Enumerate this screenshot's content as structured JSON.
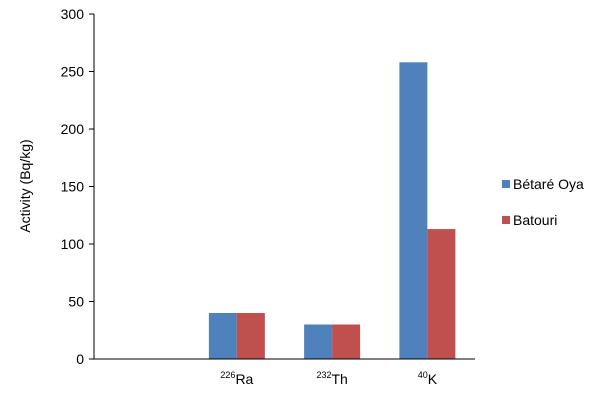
{
  "chart_data": {
    "type": "bar",
    "title": "",
    "xlabel": "",
    "ylabel": "Activity (Bq/kg)",
    "ylim": [
      0,
      300
    ],
    "yticks": [
      0,
      50,
      100,
      150,
      200,
      250,
      300
    ],
    "categories": [
      {
        "mass": "",
        "symbol": ""
      },
      {
        "mass": "226",
        "symbol": "Ra"
      },
      {
        "mass": "232",
        "symbol": "Th"
      },
      {
        "mass": "40",
        "symbol": "K"
      }
    ],
    "series": [
      {
        "name": "Bétaré Oya",
        "color": "#4F81BD",
        "values": [
          null,
          40,
          30,
          258
        ]
      },
      {
        "name": "Batouri",
        "color": "#C0504D",
        "values": [
          null,
          40,
          30,
          113
        ]
      }
    ],
    "grid": false,
    "legend_position": "right"
  }
}
